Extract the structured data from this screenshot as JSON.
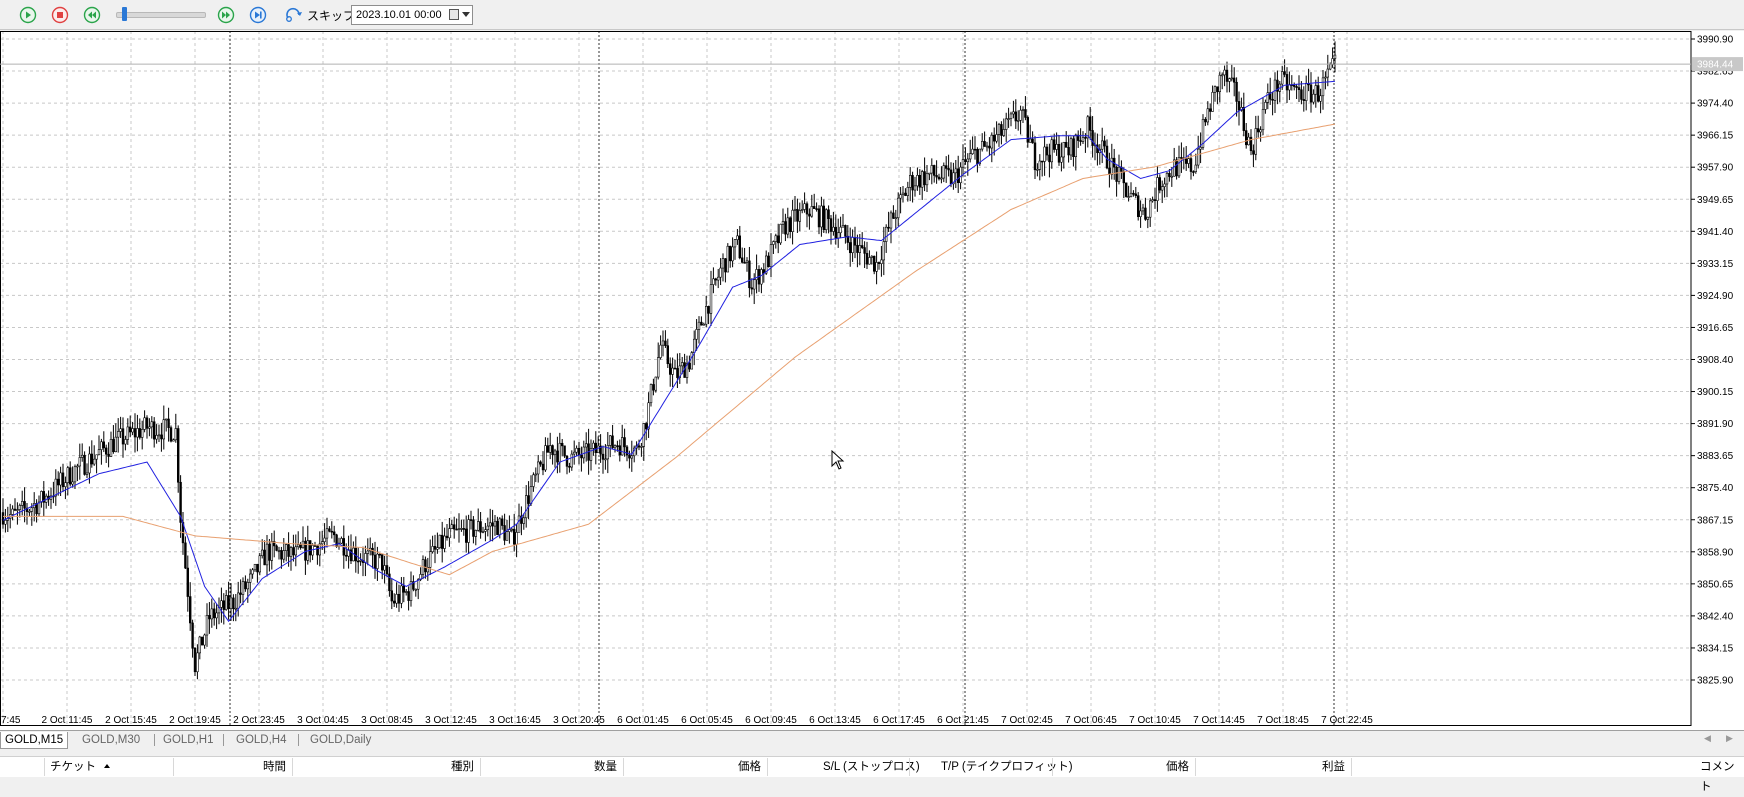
{
  "toolbar": {
    "buttons": [
      {
        "name": "play",
        "icon": "play-icon",
        "color": "#2aa44a"
      },
      {
        "name": "stop",
        "icon": "stop-icon",
        "color": "#e04040"
      },
      {
        "name": "rewind",
        "icon": "rewind-icon",
        "color": "#2aa44a"
      },
      {
        "name": "fast-forward",
        "icon": "fast-forward-icon",
        "color": "#2aa44a"
      },
      {
        "name": "step",
        "icon": "skip-to-end-icon",
        "color": "#2a78d6"
      }
    ],
    "skip_label": "スキップ",
    "date_value": "2023.10.01 00:00"
  },
  "chart_data": {
    "type": "candlestick",
    "symbol": "GOLD,M15",
    "y_ticks": [
      3990.9,
      3982.65,
      3974.4,
      3966.15,
      3957.9,
      3949.65,
      3941.4,
      3933.15,
      3924.9,
      3916.65,
      3908.4,
      3900.15,
      3891.9,
      3883.65,
      3875.4,
      3867.15,
      3858.9,
      3850.65,
      3842.4,
      3834.15,
      3825.9
    ],
    "y_tick_labels": [
      "3990.90",
      "3982.65",
      "3974.40",
      "3966.15",
      "3957.90",
      "3949.65",
      "3941.40",
      "3933.15",
      "3924.90",
      "3916.65",
      "3908.40",
      "3900.15",
      "3891.90",
      "3883.65",
      "3875.40",
      "3867.15",
      "3858.90",
      "3850.65",
      "3842.40",
      "3834.15",
      "3825.90"
    ],
    "ylim": [
      3822.0,
      3993.0
    ],
    "x_tick_labels": [
      "7:45",
      "2 Oct 11:45",
      "2 Oct 15:45",
      "2 Oct 19:45",
      "2 Oct 23:45",
      "3 Oct 04:45",
      "3 Oct 08:45",
      "3 Oct 12:45",
      "3 Oct 16:45",
      "3 Oct 20:45",
      "6 Oct 01:45",
      "6 Oct 05:45",
      "6 Oct 09:45",
      "6 Oct 13:45",
      "6 Oct 17:45",
      "6 Oct 21:45",
      "7 Oct 02:45",
      "7 Oct 06:45",
      "7 Oct 10:45",
      "7 Oct 14:45",
      "7 Oct 18:45",
      "7 Oct 22:45"
    ],
    "current_price": "3984.44",
    "grid": true,
    "price_path": [
      [
        0,
        3869
      ],
      [
        4,
        3868
      ],
      [
        16,
        3872
      ],
      [
        30,
        3880
      ],
      [
        46,
        3887
      ],
      [
        60,
        3891
      ],
      [
        72,
        3890
      ],
      [
        74,
        3868
      ],
      [
        80,
        3830
      ],
      [
        86,
        3842
      ],
      [
        96,
        3846
      ],
      [
        104,
        3852
      ],
      [
        110,
        3859
      ],
      [
        122,
        3858
      ],
      [
        138,
        3863
      ],
      [
        148,
        3858
      ],
      [
        158,
        3856
      ],
      [
        162,
        3846
      ],
      [
        170,
        3849
      ],
      [
        176,
        3856
      ],
      [
        186,
        3863
      ],
      [
        198,
        3865
      ],
      [
        206,
        3866
      ],
      [
        212,
        3862
      ],
      [
        220,
        3875
      ],
      [
        228,
        3886
      ],
      [
        236,
        3883
      ],
      [
        244,
        3884
      ],
      [
        256,
        3887
      ],
      [
        264,
        3885
      ],
      [
        268,
        3893
      ],
      [
        274,
        3912
      ],
      [
        280,
        3904
      ],
      [
        286,
        3908
      ],
      [
        292,
        3920
      ],
      [
        300,
        3933
      ],
      [
        306,
        3938
      ],
      [
        312,
        3928
      ],
      [
        318,
        3933
      ],
      [
        326,
        3943
      ],
      [
        336,
        3947
      ],
      [
        346,
        3943
      ],
      [
        356,
        3937
      ],
      [
        364,
        3933
      ],
      [
        370,
        3944
      ],
      [
        378,
        3954
      ],
      [
        386,
        3956
      ],
      [
        396,
        3955
      ],
      [
        404,
        3961
      ],
      [
        410,
        3963
      ],
      [
        418,
        3968
      ],
      [
        424,
        3972
      ],
      [
        430,
        3960
      ],
      [
        436,
        3962
      ],
      [
        444,
        3962
      ],
      [
        452,
        3968
      ],
      [
        458,
        3962
      ],
      [
        464,
        3956
      ],
      [
        470,
        3950
      ],
      [
        476,
        3946
      ],
      [
        482,
        3954
      ],
      [
        488,
        3958
      ],
      [
        496,
        3958
      ],
      [
        502,
        3972
      ],
      [
        508,
        3982
      ],
      [
        514,
        3976
      ],
      [
        520,
        3962
      ],
      [
        526,
        3974
      ],
      [
        532,
        3980
      ],
      [
        540,
        3977
      ],
      [
        548,
        3977
      ],
      [
        555,
        3984
      ]
    ],
    "series": [
      {
        "type": "ma",
        "color": "#2020e0",
        "values": [
          [
            0,
            3867
          ],
          [
            40,
            3879
          ],
          [
            60,
            3882
          ],
          [
            74,
            3868
          ],
          [
            84,
            3850
          ],
          [
            94,
            3841
          ],
          [
            108,
            3852
          ],
          [
            126,
            3859
          ],
          [
            140,
            3861
          ],
          [
            156,
            3854
          ],
          [
            168,
            3850
          ],
          [
            184,
            3855
          ],
          [
            204,
            3862
          ],
          [
            214,
            3866
          ],
          [
            232,
            3882
          ],
          [
            250,
            3886
          ],
          [
            262,
            3884
          ],
          [
            274,
            3896
          ],
          [
            290,
            3912
          ],
          [
            304,
            3927
          ],
          [
            316,
            3930
          ],
          [
            332,
            3938
          ],
          [
            352,
            3940
          ],
          [
            366,
            3939
          ],
          [
            384,
            3948
          ],
          [
            400,
            3956
          ],
          [
            420,
            3965
          ],
          [
            440,
            3966
          ],
          [
            452,
            3966
          ],
          [
            460,
            3960
          ],
          [
            474,
            3955
          ],
          [
            486,
            3957
          ],
          [
            500,
            3964
          ],
          [
            514,
            3972
          ],
          [
            534,
            3979
          ],
          [
            555,
            3980
          ]
        ]
      },
      {
        "type": "ma",
        "color": "#e8a070",
        "values": [
          [
            0,
            3868
          ],
          [
            50,
            3868
          ],
          [
            80,
            3863
          ],
          [
            120,
            3861
          ],
          [
            150,
            3860
          ],
          [
            170,
            3856
          ],
          [
            186,
            3853
          ],
          [
            204,
            3859
          ],
          [
            244,
            3866
          ],
          [
            280,
            3883
          ],
          [
            330,
            3909
          ],
          [
            380,
            3931
          ],
          [
            420,
            3947
          ],
          [
            450,
            3955
          ],
          [
            480,
            3958
          ],
          [
            520,
            3965
          ],
          [
            555,
            3969
          ]
        ]
      }
    ]
  },
  "tabs": [
    "GOLD,M15",
    "GOLD,M30",
    "GOLD,H1",
    "GOLD,H4",
    "GOLD,Daily"
  ],
  "active_tab": "GOLD,M15",
  "table_headers": {
    "ticket": "チケット",
    "time": "時間",
    "type": "種別",
    "volume": "数量",
    "price": "価格",
    "sl": "S/L (ストップロス)",
    "tp": "T/P (テイクプロフィット)",
    "price2": "価格",
    "profit": "利益",
    "comment": "コメント"
  }
}
